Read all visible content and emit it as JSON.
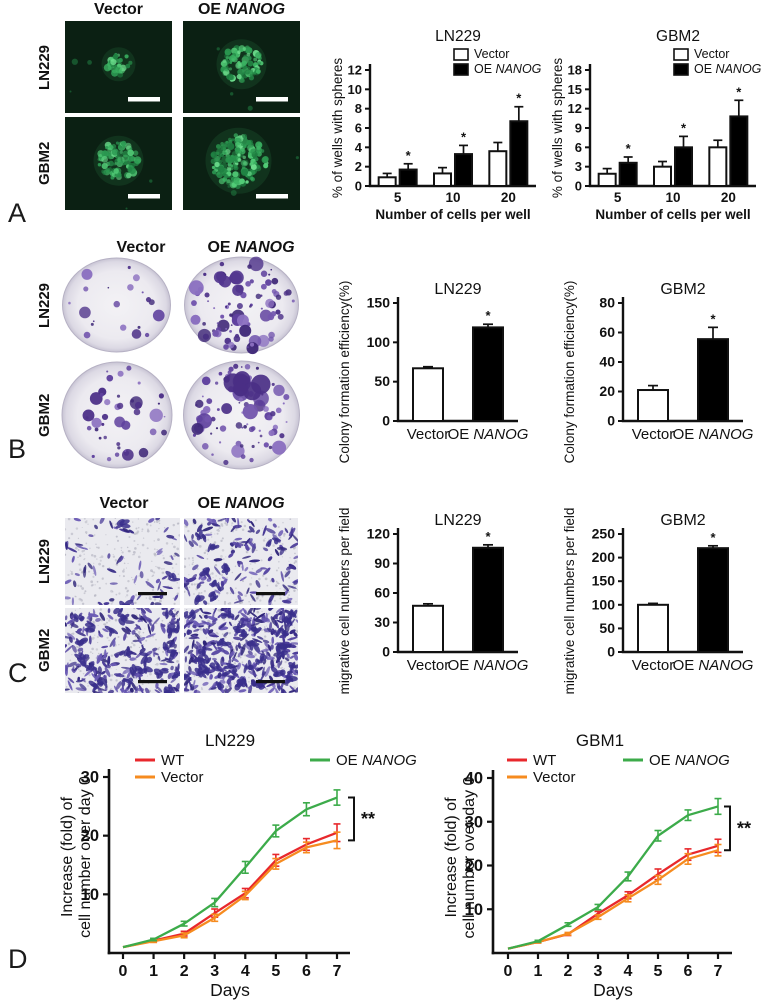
{
  "panels": {
    "A": {
      "letter": "A",
      "col_headers": [
        "Vector",
        "OE NANOG"
      ],
      "row_labels": [
        "LN229",
        "GBM2"
      ],
      "image_type": "fluorescence tumor sphere micrographs"
    },
    "B": {
      "letter": "B",
      "col_headers": [
        "Vector",
        "OE NANOG"
      ],
      "row_labels": [
        "LN229",
        "GBM2"
      ],
      "image_type": "crystal violet stained colony formation dishes"
    },
    "C": {
      "letter": "C",
      "col_headers": [
        "Vector",
        "OE NANOG"
      ],
      "row_labels": [
        "LN229",
        "GBM2"
      ],
      "image_type": "transwell migration assay micrographs"
    },
    "D": {
      "letter": "D"
    }
  },
  "chart_data": [
    {
      "id": "sphere_ln229",
      "type": "bar",
      "title": "LN229",
      "ylabel": "% of wells with spheres",
      "xlabel": "Number of cells per well",
      "ymax": 12,
      "ystep": 2,
      "categories": [
        "5",
        "10",
        "20"
      ],
      "legend_position": "top-right",
      "series": [
        {
          "name": "Vector",
          "fill": "#ffffff",
          "values": [
            0.9,
            1.3,
            3.6
          ],
          "errors": [
            0.4,
            0.6,
            0.9
          ],
          "sig": [
            "",
            "",
            ""
          ]
        },
        {
          "name": "OE NANOG",
          "fill": "#000000",
          "values": [
            1.7,
            3.3,
            6.7
          ],
          "errors": [
            0.6,
            0.9,
            1.5
          ],
          "sig": [
            "*",
            "*",
            "*"
          ]
        }
      ]
    },
    {
      "id": "sphere_gbm2",
      "type": "bar",
      "title": "GBM2",
      "ylabel": "% of wells with spheres",
      "xlabel": "Number of cells per well",
      "ymax": 18,
      "ystep": 3,
      "categories": [
        "5",
        "10",
        "20"
      ],
      "legend_position": "top-right",
      "series": [
        {
          "name": "Vector",
          "fill": "#ffffff",
          "values": [
            1.9,
            3.0,
            6.0
          ],
          "errors": [
            0.8,
            0.8,
            1.1
          ],
          "sig": [
            "",
            "",
            ""
          ]
        },
        {
          "name": "OE NANOG",
          "fill": "#000000",
          "values": [
            3.6,
            6.0,
            10.8
          ],
          "errors": [
            0.9,
            1.7,
            2.5
          ],
          "sig": [
            "*",
            "*",
            "*"
          ]
        }
      ]
    },
    {
      "id": "colony_ln229",
      "type": "bar",
      "title": "LN229",
      "ylabel": "Colony formation efficiency(%)",
      "ymax": 150,
      "ystep": 50,
      "categories": [
        "Vector",
        "OE NANOG"
      ],
      "values": [
        67,
        119
      ],
      "errors": [
        2,
        4
      ],
      "sig": [
        "",
        "*"
      ],
      "bar_fills": [
        "#ffffff",
        "#000000"
      ]
    },
    {
      "id": "colony_gbm2",
      "type": "bar",
      "title": "GBM2",
      "ylabel": "Colony formation efficiency(%)",
      "ymax": 80,
      "ystep": 20,
      "categories": [
        "Vector",
        "OE NANOG"
      ],
      "values": [
        21,
        55.5
      ],
      "errors": [
        3,
        8
      ],
      "sig": [
        "",
        "*"
      ],
      "bar_fills": [
        "#ffffff",
        "#000000"
      ]
    },
    {
      "id": "migration_ln229",
      "type": "bar",
      "title": "LN229",
      "ylabel": "migrative cell numbers per field",
      "ymax": 120,
      "ystep": 30,
      "categories": [
        "Vector",
        "OE NANOG"
      ],
      "values": [
        47,
        106
      ],
      "errors": [
        2,
        3
      ],
      "sig": [
        "",
        "*"
      ],
      "bar_fills": [
        "#ffffff",
        "#000000"
      ]
    },
    {
      "id": "migration_gbm2",
      "type": "bar",
      "title": "GBM2",
      "ylabel": "migrative cell numbers per field",
      "ymax": 250,
      "ystep": 50,
      "categories": [
        "Vector",
        "OE NANOG"
      ],
      "values": [
        100,
        220
      ],
      "errors": [
        3,
        5
      ],
      "sig": [
        "",
        "*"
      ],
      "bar_fills": [
        "#ffffff",
        "#000000"
      ]
    },
    {
      "id": "growth_ln229",
      "type": "line",
      "title": "LN229",
      "ylabel_lines": [
        "Increase (fold) of",
        "cell number over day 0"
      ],
      "xlabel": "Days",
      "x": [
        0,
        1,
        2,
        3,
        4,
        5,
        6,
        7
      ],
      "ymax": 30,
      "ystep": 10,
      "annotation": "**",
      "series": [
        {
          "name": "WT",
          "color": "#e8282c",
          "values": [
            1,
            2.1,
            3.3,
            6.8,
            10.2,
            15.8,
            18.5,
            20.5
          ],
          "errors": [
            0.1,
            0.2,
            0.4,
            0.7,
            0.8,
            1.0,
            1.0,
            1.5
          ]
        },
        {
          "name": "Vector",
          "color": "#f68b1f",
          "values": [
            1,
            2.0,
            3.0,
            6.0,
            9.8,
            15.2,
            18.0,
            19.2
          ],
          "errors": [
            0.1,
            0.2,
            0.4,
            0.6,
            0.7,
            0.9,
            0.9,
            1.4
          ]
        },
        {
          "name": "OE NANOG",
          "color": "#3cab4a",
          "values": [
            1,
            2.3,
            5.0,
            8.6,
            14.6,
            20.8,
            24.5,
            26.5
          ],
          "errors": [
            0.1,
            0.2,
            0.4,
            0.7,
            1.0,
            1.0,
            1.1,
            1.3
          ]
        }
      ]
    },
    {
      "id": "growth_gbm1",
      "type": "line",
      "title": "GBM1",
      "ylabel_lines": [
        "Increase (fold) of",
        "cell number over day 0"
      ],
      "xlabel": "Days",
      "x": [
        0,
        1,
        2,
        3,
        4,
        5,
        6,
        7
      ],
      "ymax": 40,
      "ystep": 10,
      "annotation": "**",
      "series": [
        {
          "name": "WT",
          "color": "#e8282c",
          "values": [
            1,
            2.5,
            4.3,
            9.0,
            13.2,
            18.0,
            22.5,
            24.5
          ],
          "errors": [
            0.1,
            0.2,
            0.3,
            0.5,
            0.8,
            1.2,
            1.3,
            1.5
          ]
        },
        {
          "name": "Vector",
          "color": "#f68b1f",
          "values": [
            1,
            2.5,
            4.4,
            8.2,
            12.5,
            16.7,
            21.5,
            23.5
          ],
          "errors": [
            0.1,
            0.2,
            0.3,
            0.5,
            0.8,
            1.0,
            1.2,
            1.3
          ]
        },
        {
          "name": "OE NANOG",
          "color": "#3cab4a",
          "values": [
            1,
            2.7,
            6.5,
            10.5,
            17.5,
            26.8,
            31.5,
            33.5
          ],
          "errors": [
            0.1,
            0.2,
            0.4,
            0.6,
            1.0,
            1.2,
            1.2,
            1.8
          ]
        }
      ]
    }
  ]
}
